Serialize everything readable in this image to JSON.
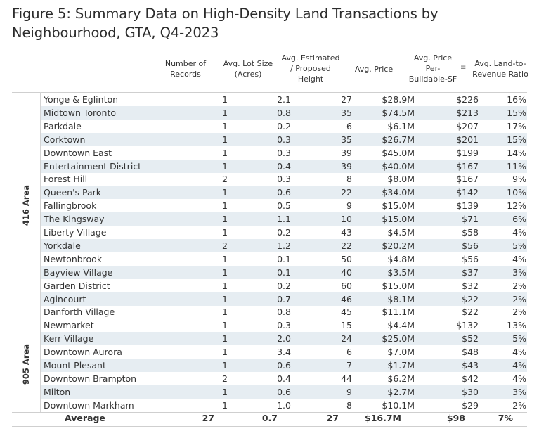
{
  "title": "Figure 5: Summary Data on High-Density Land Transactions by Neighbourhood, GTA, Q4-2023",
  "chart_data": {
    "type": "table",
    "columns": [
      "Number of Records",
      "Avg. Lot Size (Acres)",
      "Avg. Estimated / Proposed Height",
      "Avg. Price",
      "Avg. Price Per-Buildable-SF",
      "Avg. Land-to-Revenue Ratio"
    ],
    "groups": [
      {
        "name": "416 Area",
        "rows": [
          {
            "name": "Yonge & Eglinton",
            "records": "1",
            "lot": "2.1",
            "height": "27",
            "price": "$28.9M",
            "psf": "$226",
            "ratio": "16%"
          },
          {
            "name": "Midtown Toronto",
            "records": "1",
            "lot": "0.8",
            "height": "35",
            "price": "$74.5M",
            "psf": "$213",
            "ratio": "15%"
          },
          {
            "name": "Parkdale",
            "records": "1",
            "lot": "0.2",
            "height": "6",
            "price": "$6.1M",
            "psf": "$207",
            "ratio": "17%"
          },
          {
            "name": "Corktown",
            "records": "1",
            "lot": "0.3",
            "height": "35",
            "price": "$26.7M",
            "psf": "$201",
            "ratio": "15%"
          },
          {
            "name": "Downtown East",
            "records": "1",
            "lot": "0.3",
            "height": "39",
            "price": "$45.0M",
            "psf": "$199",
            "ratio": "14%"
          },
          {
            "name": "Entertainment District",
            "records": "1",
            "lot": "0.4",
            "height": "39",
            "price": "$40.0M",
            "psf": "$167",
            "ratio": "11%"
          },
          {
            "name": "Forest Hill",
            "records": "2",
            "lot": "0.3",
            "height": "8",
            "price": "$8.0M",
            "psf": "$167",
            "ratio": "9%"
          },
          {
            "name": "Queen's Park",
            "records": "1",
            "lot": "0.6",
            "height": "22",
            "price": "$34.0M",
            "psf": "$142",
            "ratio": "10%"
          },
          {
            "name": "Fallingbrook",
            "records": "1",
            "lot": "0.5",
            "height": "9",
            "price": "$15.0M",
            "psf": "$139",
            "ratio": "12%"
          },
          {
            "name": "The Kingsway",
            "records": "1",
            "lot": "1.1",
            "height": "10",
            "price": "$15.0M",
            "psf": "$71",
            "ratio": "6%"
          },
          {
            "name": "Liberty Village",
            "records": "1",
            "lot": "0.2",
            "height": "43",
            "price": "$4.5M",
            "psf": "$58",
            "ratio": "4%"
          },
          {
            "name": "Yorkdale",
            "records": "2",
            "lot": "1.2",
            "height": "22",
            "price": "$20.2M",
            "psf": "$56",
            "ratio": "5%"
          },
          {
            "name": "Newtonbrook",
            "records": "1",
            "lot": "0.1",
            "height": "50",
            "price": "$4.8M",
            "psf": "$56",
            "ratio": "4%"
          },
          {
            "name": "Bayview Village",
            "records": "1",
            "lot": "0.1",
            "height": "40",
            "price": "$3.5M",
            "psf": "$37",
            "ratio": "3%"
          },
          {
            "name": "Garden District",
            "records": "1",
            "lot": "0.2",
            "height": "60",
            "price": "$15.0M",
            "psf": "$32",
            "ratio": "2%"
          },
          {
            "name": "Agincourt",
            "records": "1",
            "lot": "0.7",
            "height": "46",
            "price": "$8.1M",
            "psf": "$22",
            "ratio": "2%"
          },
          {
            "name": "Danforth Village",
            "records": "1",
            "lot": "0.8",
            "height": "45",
            "price": "$11.1M",
            "psf": "$22",
            "ratio": "2%"
          }
        ]
      },
      {
        "name": "905 Area",
        "rows": [
          {
            "name": "Newmarket",
            "records": "1",
            "lot": "0.3",
            "height": "15",
            "price": "$4.4M",
            "psf": "$132",
            "ratio": "13%"
          },
          {
            "name": "Kerr Village",
            "records": "1",
            "lot": "2.0",
            "height": "24",
            "price": "$25.0M",
            "psf": "$52",
            "ratio": "5%"
          },
          {
            "name": "Downtown Aurora",
            "records": "1",
            "lot": "3.4",
            "height": "6",
            "price": "$7.0M",
            "psf": "$48",
            "ratio": "4%"
          },
          {
            "name": "Mount Plesant",
            "records": "1",
            "lot": "0.6",
            "height": "7",
            "price": "$1.7M",
            "psf": "$43",
            "ratio": "4%"
          },
          {
            "name": "Downtown Brampton",
            "records": "2",
            "lot": "0.4",
            "height": "44",
            "price": "$6.2M",
            "psf": "$42",
            "ratio": "4%"
          },
          {
            "name": "Milton",
            "records": "1",
            "lot": "0.6",
            "height": "9",
            "price": "$2.7M",
            "psf": "$30",
            "ratio": "3%"
          },
          {
            "name": "Downtown Markham",
            "records": "1",
            "lot": "1.0",
            "height": "8",
            "price": "$10.1M",
            "psf": "$29",
            "ratio": "2%"
          }
        ]
      }
    ],
    "average": {
      "label": "Average",
      "records": "27",
      "lot": "0.7",
      "height": "27",
      "price": "$16.7M",
      "psf": "$98",
      "ratio": "7%"
    },
    "sort_icon": "sort-descending-icon",
    "colors": {
      "shaded_row": "#e6edf2",
      "rule": "#cfcfcf"
    }
  }
}
